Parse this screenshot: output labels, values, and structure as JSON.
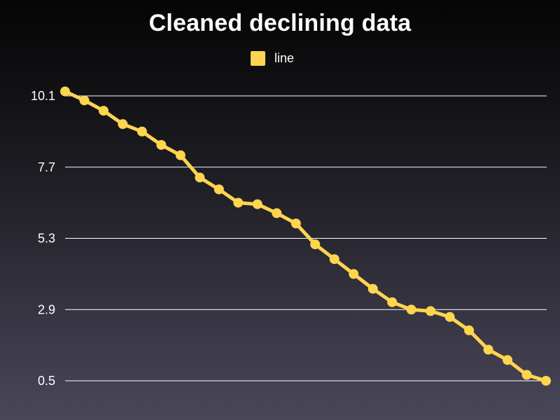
{
  "chart_data": {
    "type": "line",
    "title": "Cleaned declining data",
    "xlabel": "",
    "ylabel": "",
    "legend_position": "top-center",
    "ylim": [
      0.5,
      10.1
    ],
    "yticks": [
      10.1,
      7.7,
      5.3,
      2.9,
      0.5
    ],
    "ytick_labels": [
      "10.1",
      "7.7",
      "5.3",
      "2.9",
      "0.5"
    ],
    "x": [
      0,
      1,
      2,
      3,
      4,
      5,
      6,
      7,
      8,
      9,
      10,
      11,
      12,
      13,
      14,
      15,
      16,
      17,
      18,
      19,
      20,
      21,
      22,
      23,
      24,
      25
    ],
    "series": [
      {
        "name": "line",
        "color": "#FFD54F",
        "values": [
          10.25,
          9.95,
          9.6,
          9.15,
          8.9,
          8.45,
          8.1,
          7.35,
          6.95,
          6.5,
          6.45,
          6.15,
          5.8,
          5.1,
          4.6,
          4.1,
          3.6,
          3.15,
          2.9,
          2.85,
          2.65,
          2.2,
          1.55,
          1.2,
          0.7,
          0.5
        ]
      }
    ]
  }
}
